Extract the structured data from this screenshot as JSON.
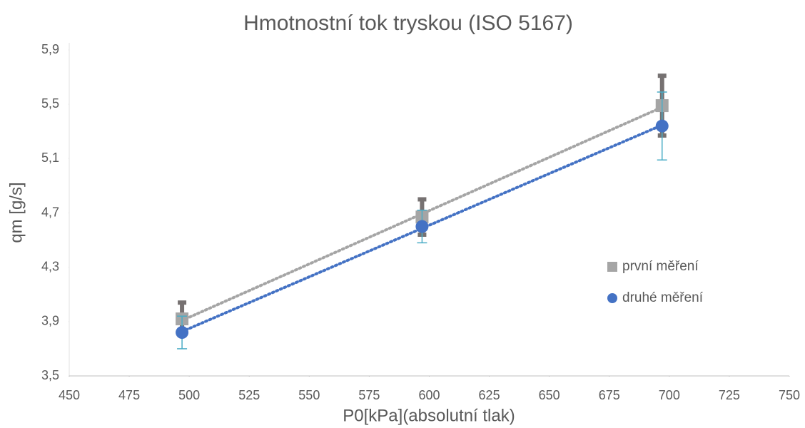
{
  "chart_data": {
    "type": "scatter",
    "title": "Hmotnostní tok tryskou (ISO 5167)",
    "xlabel": "P0[kPa](absolutní tlak)",
    "ylabel": "qm [g/s]",
    "x": [
      497,
      597,
      697
    ],
    "series": [
      {
        "name": "první měření",
        "color": "#a5a5a5",
        "marker": "square",
        "error_color": "#767171",
        "trendline": "linear",
        "values": [
          3.92,
          4.67,
          5.49
        ],
        "errors": [
          0.12,
          0.13,
          0.22
        ]
      },
      {
        "name": "druhé měření",
        "color": "#4472c4",
        "marker": "circle",
        "error_color": "#4bacc6",
        "trendline": "linear",
        "values": [
          3.82,
          4.6,
          5.34
        ],
        "errors": [
          0.12,
          0.12,
          0.25
        ]
      }
    ],
    "xlim": [
      450,
      750
    ],
    "xticks": [
      450,
      475,
      500,
      525,
      550,
      575,
      600,
      625,
      650,
      675,
      700,
      725,
      750
    ],
    "ylim": [
      3.5,
      5.9
    ],
    "yticks": [
      {
        "value": 3.5,
        "label": "3,5"
      },
      {
        "value": 3.9,
        "label": "3,9"
      },
      {
        "value": 4.3,
        "label": "4,3"
      },
      {
        "value": 4.7,
        "label": "4,7"
      },
      {
        "value": 5.1,
        "label": "5,1"
      },
      {
        "value": 5.5,
        "label": "5,5"
      },
      {
        "value": 5.9,
        "label": "5,9"
      }
    ],
    "grid": false,
    "legend": "right"
  }
}
